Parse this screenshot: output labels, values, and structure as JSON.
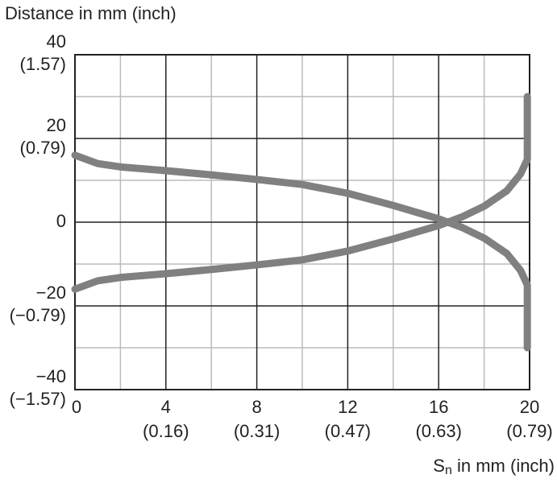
{
  "chart_data": {
    "type": "line",
    "y_label": "Distance in mm (inch)",
    "x_label": {
      "symbol": "S",
      "subscript": "n",
      "text": " in mm (inch)"
    },
    "xlim": [
      0,
      20
    ],
    "ylim": [
      -40,
      40
    ],
    "xticks": [
      0,
      {
        "value": 4,
        "label": "4",
        "label2": "(0.16)"
      },
      {
        "value": 8,
        "label": "8",
        "label2": "(0.31)"
      },
      {
        "value": 12,
        "label": "12",
        "label2": "(0.47)"
      },
      {
        "value": 16,
        "label": "16",
        "label2": "(0.63)"
      },
      {
        "value": 20,
        "label": "20",
        "label2": "(0.79)"
      }
    ],
    "yticks": [
      {
        "value": 40,
        "label": "40",
        "label2": "(1.57)"
      },
      {
        "value": 20,
        "label": "20",
        "label2": "(0.79)"
      },
      0,
      {
        "value": -20,
        "label": "−20",
        "label2": "(−0.79)"
      },
      {
        "value": -40,
        "label": "−40",
        "label2": "(−1.57)"
      }
    ],
    "minor_xticks": [
      2,
      6,
      10,
      14,
      18
    ],
    "minor_yticks": [
      -30,
      -10,
      10,
      30
    ],
    "grid": true,
    "x": [
      0,
      1,
      2,
      4,
      6,
      8,
      10,
      12,
      14,
      16,
      17,
      18,
      19,
      19.6,
      19.9,
      19.9
    ],
    "series": [
      {
        "color": "#808080",
        "values": [
          16,
          14,
          13.2,
          12.3,
          11.3,
          10.2,
          9,
          6.9,
          4,
          0.8,
          -1.2,
          -3.8,
          -7.5,
          -11.5,
          -15,
          -30
        ]
      },
      {
        "color": "#808080",
        "values": [
          -16,
          -14,
          -13.2,
          -12.3,
          -11.3,
          -10.2,
          -9,
          -6.9,
          -4,
          -0.8,
          1.2,
          3.8,
          7.5,
          11.5,
          15,
          30
        ]
      }
    ]
  }
}
